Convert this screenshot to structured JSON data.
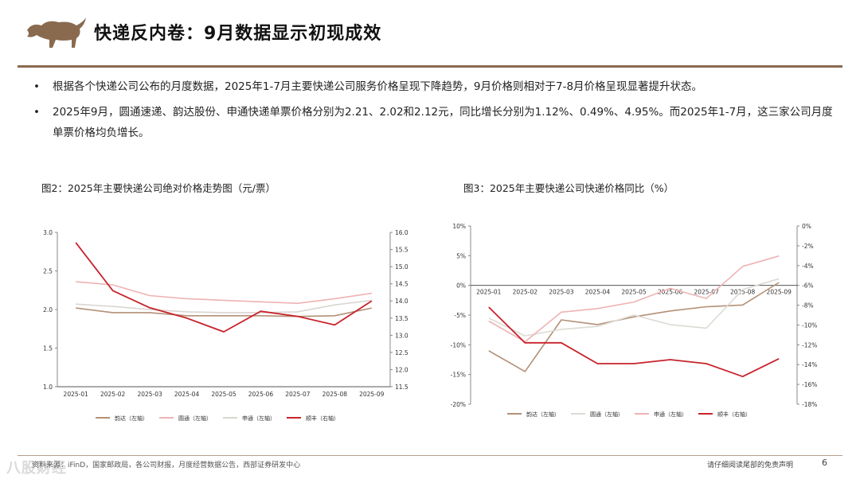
{
  "header": {
    "title": "快递反内卷：9月数据显示初现成效",
    "brand_color": "#8a6a4f"
  },
  "bullets": [
    "根据各个快递公司公布的月度数据，2025年1-7月主要快递公司服务价格呈现下降趋势，9月价格则相对于7-8月价格呈现显著提升状态。",
    "2025年9月，圆通速递、韵达股份、申通快递单票价格分别为2.21、2.02和2.12元，同比增长分别为1.12%、0.49%、4.95%。而2025年1-7月，这三家公司月度单票价格均负增长。"
  ],
  "figures": {
    "fig2_title": "图2：2025年主要快递公司绝对价格走势图（元/票）",
    "fig3_title": "图3：2025年主要快递公司快递价格同比（%）"
  },
  "chart_data": [
    {
      "type": "line",
      "title": "图2：2025年主要快递公司绝对价格走势图（元/票）",
      "categories": [
        "2025-01",
        "2025-02",
        "2025-03",
        "2025-04",
        "2025-05",
        "2025-06",
        "2025-07",
        "2025-08",
        "2025-09"
      ],
      "left_axis": {
        "ylim": [
          1.0,
          3.0
        ],
        "ticks": [
          "1.0",
          "1.5",
          "2.0",
          "2.5",
          "3.0"
        ]
      },
      "right_axis": {
        "ylim": [
          11.5,
          16.0
        ],
        "ticks": [
          "11.5",
          "12.0",
          "12.5",
          "13.0",
          "13.5",
          "14.0",
          "14.5",
          "15.0",
          "15.5",
          "16.0"
        ]
      },
      "series": [
        {
          "name": "韵达（左轴）",
          "axis": "left",
          "color": "#b39076",
          "values": [
            2.02,
            1.96,
            1.96,
            1.92,
            1.92,
            1.92,
            1.91,
            1.92,
            2.02
          ]
        },
        {
          "name": "圆通（左轴）",
          "axis": "left",
          "color": "#efb3b3",
          "values": [
            2.36,
            2.32,
            2.18,
            2.14,
            2.12,
            2.1,
            2.08,
            2.14,
            2.21
          ]
        },
        {
          "name": "申通（左轴）",
          "axis": "left",
          "color": "#d9d6d0",
          "values": [
            2.07,
            2.04,
            2.0,
            1.97,
            1.96,
            1.96,
            1.97,
            2.06,
            2.12
          ]
        },
        {
          "name": "顺丰（右轴）",
          "axis": "right",
          "color": "#c8232c",
          "values": [
            15.7,
            14.3,
            13.8,
            13.5,
            13.1,
            13.7,
            13.55,
            13.3,
            14.0
          ]
        }
      ],
      "legend_position": "bottom"
    },
    {
      "type": "line",
      "title": "图3：2025年主要快递公司快递价格同比（%）",
      "categories": [
        "2025-01",
        "2025-02",
        "2025-03",
        "2025-04",
        "2025-05",
        "2025-06",
        "2025-07",
        "2025-08",
        "2025-09"
      ],
      "left_axis": {
        "ylim": [
          -20,
          10
        ],
        "ticks": [
          "-20%",
          "-15%",
          "-10%",
          "-5%",
          "0%",
          "5%",
          "10%"
        ]
      },
      "right_axis": {
        "ylim": [
          -18,
          0
        ],
        "ticks": [
          "-18%",
          "-16%",
          "-14%",
          "-12%",
          "-10%",
          "-8%",
          "-6%",
          "-4%",
          "-2%",
          "0%"
        ]
      },
      "series": [
        {
          "name": "韵达（左轴）",
          "axis": "left",
          "color": "#b39076",
          "values": [
            -11.0,
            -14.5,
            -5.8,
            -6.6,
            -5.3,
            -4.3,
            -3.6,
            -3.3,
            0.49
          ]
        },
        {
          "name": "圆通（左轴）",
          "axis": "left",
          "color": "#dcdad3",
          "values": [
            -5.5,
            -8.5,
            -7.4,
            -6.9,
            -5.0,
            -6.6,
            -7.2,
            -0.7,
            1.12
          ]
        },
        {
          "name": "申通（左轴）",
          "axis": "left",
          "color": "#efb3b3",
          "values": [
            -6.0,
            -9.5,
            -4.5,
            -3.9,
            -2.8,
            -0.5,
            -2.2,
            3.2,
            4.95
          ]
        },
        {
          "name": "顺丰（右轴）",
          "axis": "right",
          "color": "#c8232c",
          "values": [
            -8.2,
            -11.8,
            -11.8,
            -13.9,
            -13.9,
            -13.5,
            -13.9,
            -15.2,
            -13.4
          ]
        }
      ],
      "legend_position": "bottom"
    }
  ],
  "footer": {
    "source": "资料来源：iFinD，国家邮政局，各公司财报，月度经营数据公告，西部证券研发中心",
    "disclaimer": "请仔细阅读尾部的免责声明",
    "page": "6",
    "watermark": "八股财经"
  }
}
